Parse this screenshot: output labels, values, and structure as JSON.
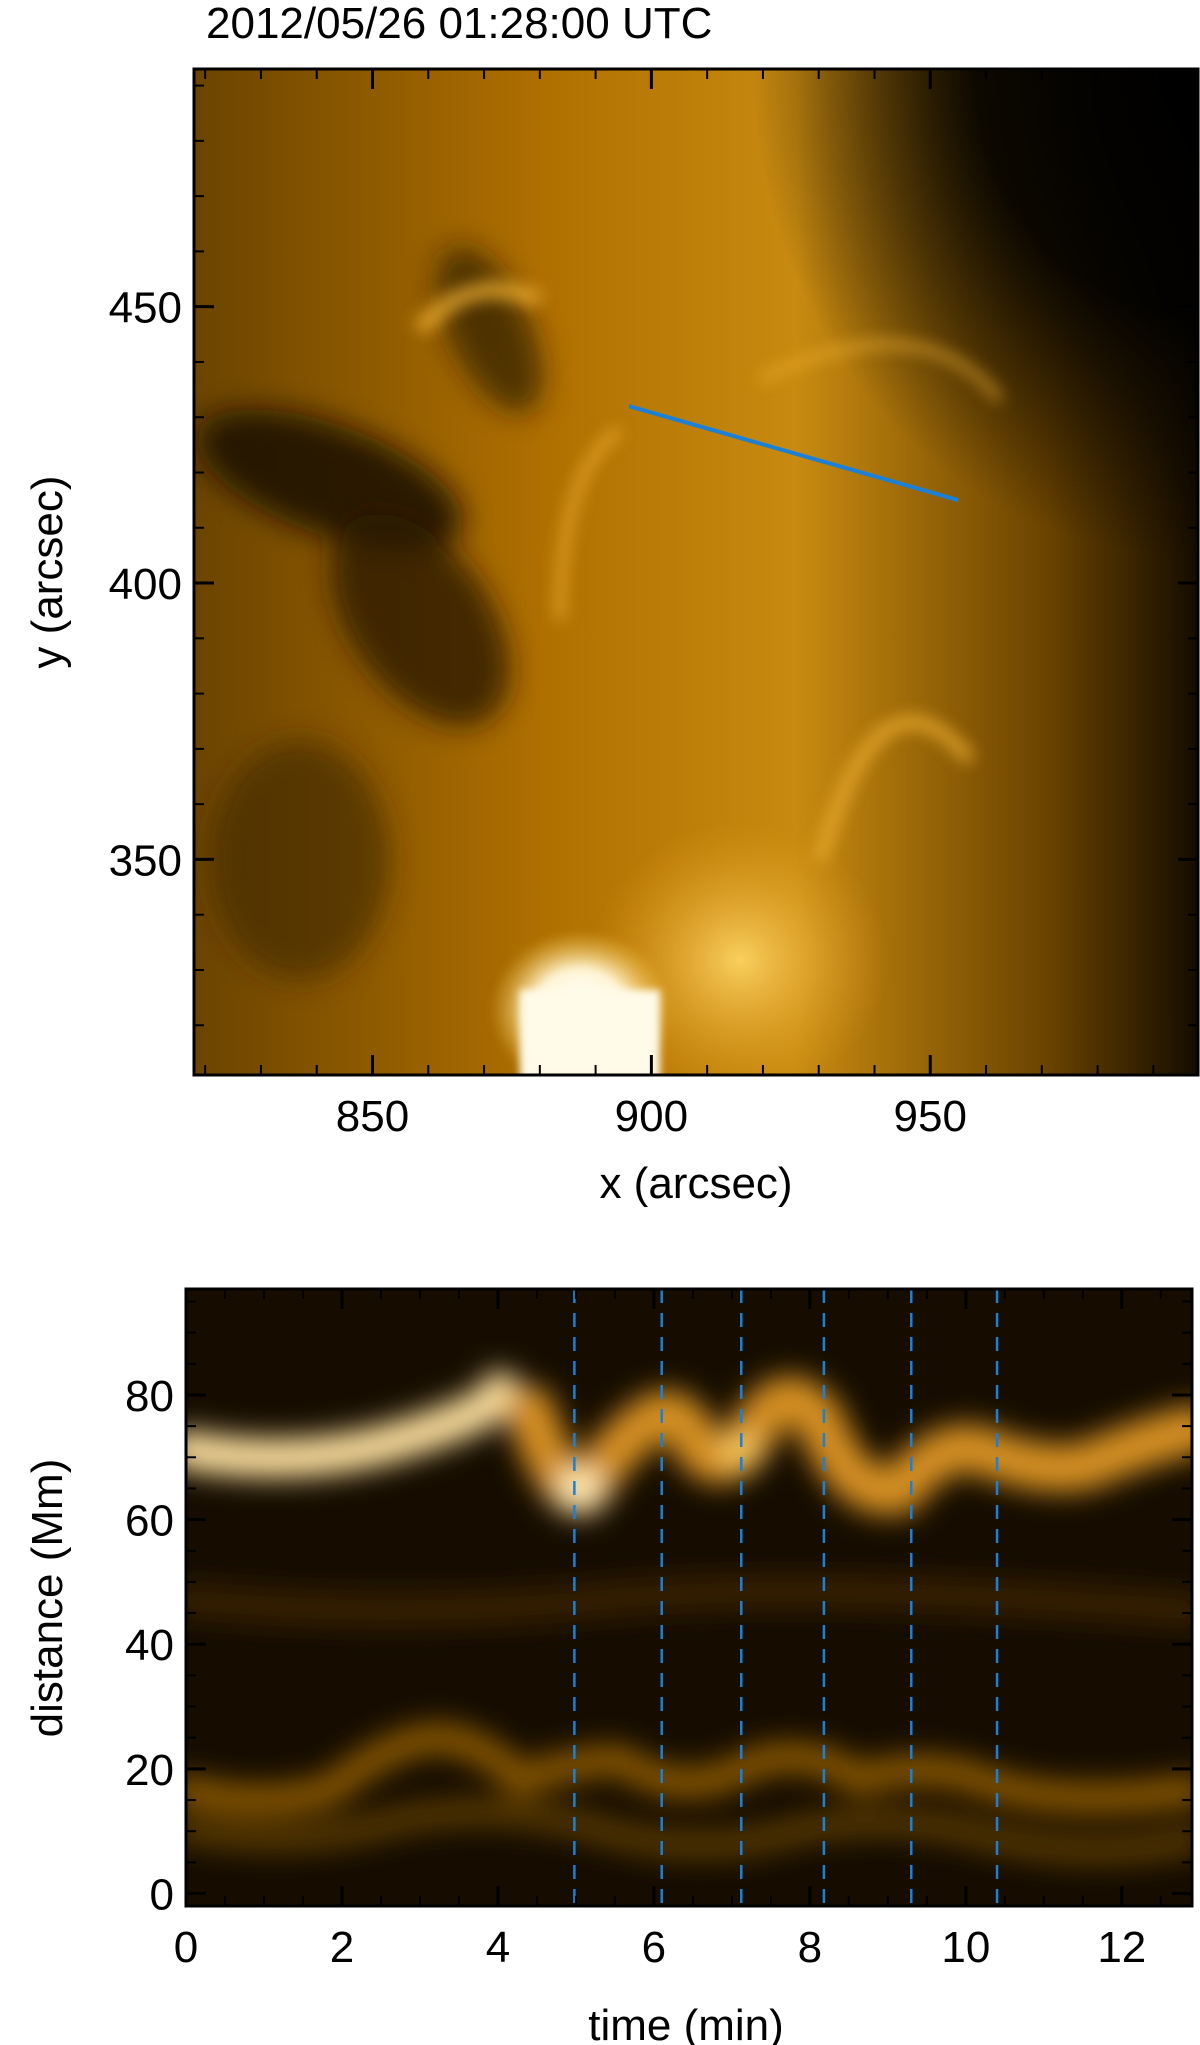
{
  "chart_data": [
    {
      "type": "heatmap",
      "title": "2012/05/26  01:28:00  UTC",
      "xlabel": "x (arcsec)",
      "ylabel": "y (arcsec)",
      "xlim": [
        818,
        998
      ],
      "ylim": [
        311,
        493
      ],
      "xticks": [
        850,
        900,
        950
      ],
      "yticks": [
        350,
        400,
        450
      ],
      "colormap": "sdo-aia-171-gold",
      "slit": {
        "x": [
          896,
          955
        ],
        "y": [
          432,
          415
        ],
        "color": "#1a80d8"
      }
    },
    {
      "type": "heatmap",
      "title": "",
      "xlabel": "time (min)",
      "ylabel": "distance (Mm)",
      "xlim": [
        0,
        12.9
      ],
      "ylim": [
        -2,
        97
      ],
      "xticks": [
        0,
        2,
        4,
        6,
        8,
        10,
        12
      ],
      "yticks": [
        0,
        20,
        40,
        60,
        80
      ],
      "colormap": "sdo-aia-171-gold",
      "reference_times": [
        4.98,
        6.1,
        7.12,
        8.18,
        9.3,
        10.4
      ],
      "reference_line_color": "#1a80d8"
    }
  ]
}
